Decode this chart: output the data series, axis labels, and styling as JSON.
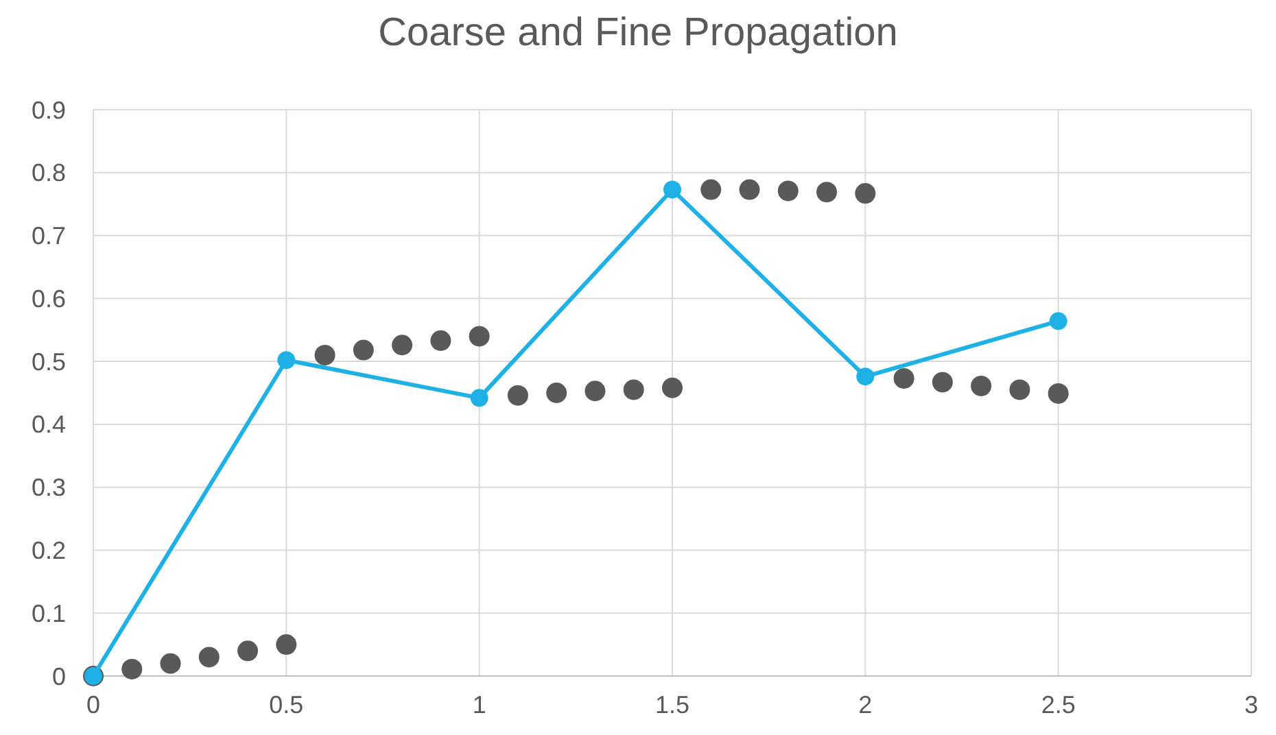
{
  "chart_data": {
    "type": "line",
    "title": "Coarse and Fine Propagation",
    "marker": "circle",
    "grid": true,
    "xlim": [
      0,
      3
    ],
    "xticks": [
      0,
      0.5,
      1,
      1.5,
      2,
      2.5,
      3
    ],
    "ylim": [
      0,
      0.9
    ],
    "yticks": [
      0,
      0.1,
      0.2,
      0.3,
      0.4,
      0.5,
      0.6,
      0.7,
      0.8,
      0.9
    ],
    "series": [
      {
        "type": "scatter",
        "color": "#595959",
        "x": [
          0,
          0.1,
          0.2,
          0.3,
          0.4,
          0.5,
          0.6,
          0.7,
          0.8,
          0.9,
          1.0,
          1.1,
          1.2,
          1.3,
          1.4,
          1.5,
          1.6,
          1.7,
          1.8,
          1.9,
          2.0,
          2.1,
          2.2,
          2.3,
          2.4,
          2.5
        ],
        "values": [
          0,
          0.011,
          0.02,
          0.03,
          0.04,
          0.05,
          0.51,
          0.518,
          0.526,
          0.533,
          0.54,
          0.446,
          0.45,
          0.453,
          0.455,
          0.458,
          0.773,
          0.773,
          0.771,
          0.769,
          0.767,
          0.473,
          0.467,
          0.461,
          0.455,
          0.449
        ]
      },
      {
        "color": "#1fb0e6",
        "x": [
          0,
          0.5,
          1,
          1.5,
          2,
          2.5
        ],
        "values": [
          0,
          0.502,
          0.442,
          0.773,
          0.476,
          0.564
        ]
      }
    ]
  }
}
